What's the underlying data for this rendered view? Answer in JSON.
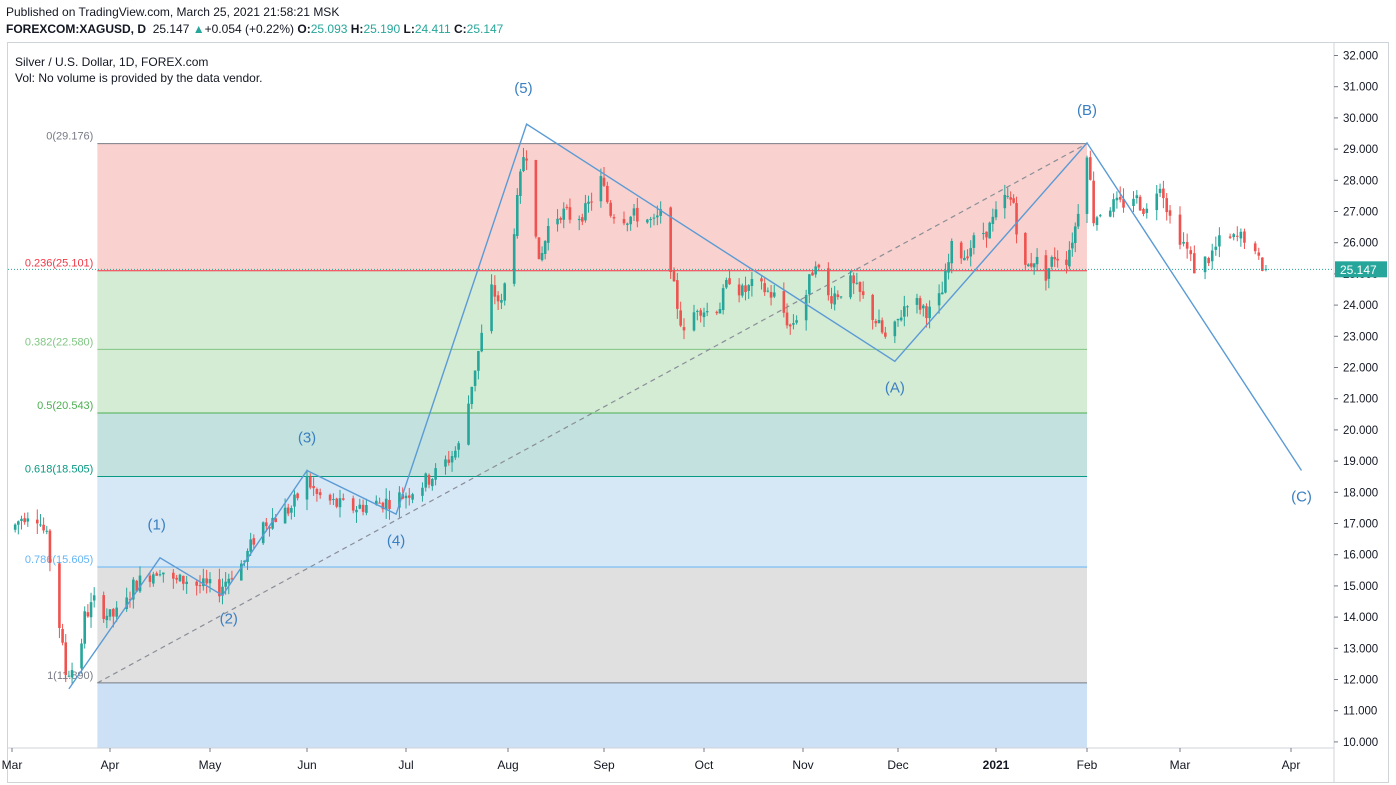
{
  "header": {
    "published": "Published on TradingView.com, March 25, 2021 21:58:21 MSK",
    "symbol": "FOREXCOM:XAGUSD, D",
    "last": "25.147",
    "change_arrow": "▲",
    "change": "+0.054 (+0.22%)",
    "o_label": "O:",
    "o": "25.093",
    "h_label": "H:",
    "h": "25.190",
    "l_label": "L:",
    "l": "24.411",
    "c_label": "C:",
    "c": "25.147"
  },
  "legend": {
    "title": "Silver / U.S. Dollar, 1D, FOREX.com",
    "vol": "Vol: No volume is provided by the data vendor."
  },
  "colors": {
    "up": "#26a69a",
    "down": "#ef5350",
    "wave": "#5b9bd5",
    "price_label_bg": "#26a69a"
  },
  "chart_data": {
    "type": "candlestick",
    "title": "Silver / U.S. Dollar, 1D, FOREX.com",
    "y_ticks": [
      "32.000",
      "31.000",
      "30.000",
      "29.000",
      "28.000",
      "27.000",
      "26.000",
      "25.000",
      "24.000",
      "23.000",
      "22.000",
      "21.000",
      "20.000",
      "19.000",
      "18.000",
      "17.000",
      "16.000",
      "15.000",
      "14.000",
      "13.000",
      "12.000",
      "11.000",
      "10.000"
    ],
    "ylim": [
      9.7,
      32.3
    ],
    "x_ticks": [
      "Mar",
      "Apr",
      "May",
      "Jun",
      "Jul",
      "Aug",
      "Sep",
      "Oct",
      "Nov",
      "Dec",
      "2021",
      "Feb",
      "Mar",
      "Apr"
    ],
    "x_tick_dates": [
      "2020-03-01",
      "2020-04-01",
      "2020-05-01",
      "2020-06-01",
      "2020-07-01",
      "2020-08-01",
      "2020-09-01",
      "2020-10-01",
      "2020-11-01",
      "2020-12-01",
      "2021-01-01",
      "2021-02-01",
      "2021-03-01",
      "2021-04-01"
    ],
    "x_range": [
      "2020-03-01",
      "2021-04-15"
    ],
    "last_price": "25.147",
    "last_price_value": 25.147,
    "price_path": [
      [
        "2020-03-01",
        16.8
      ],
      [
        "2020-03-04",
        17.2
      ],
      [
        "2020-03-08",
        17.5
      ],
      [
        "2020-03-12",
        16.5
      ],
      [
        "2020-03-15",
        14.5
      ],
      [
        "2020-03-18",
        12.2
      ],
      [
        "2020-03-22",
        12.5
      ],
      [
        "2020-03-24",
        14.0
      ],
      [
        "2020-03-27",
        14.5
      ],
      [
        "2020-04-01",
        14.0
      ],
      [
        "2020-04-05",
        14.2
      ],
      [
        "2020-04-08",
        15.0
      ],
      [
        "2020-04-12",
        15.3
      ],
      [
        "2020-04-16",
        15.6
      ],
      [
        "2020-04-20",
        15.1
      ],
      [
        "2020-04-24",
        15.2
      ],
      [
        "2020-04-28",
        15.0
      ],
      [
        "2020-05-04",
        14.9
      ],
      [
        "2020-05-07",
        15.3
      ],
      [
        "2020-05-12",
        15.8
      ],
      [
        "2020-05-15",
        16.5
      ],
      [
        "2020-05-18",
        17.0
      ],
      [
        "2020-05-22",
        17.2
      ],
      [
        "2020-05-27",
        17.5
      ],
      [
        "2020-06-01",
        18.4
      ],
      [
        "2020-06-04",
        17.9
      ],
      [
        "2020-06-10",
        17.6
      ],
      [
        "2020-06-15",
        17.5
      ],
      [
        "2020-06-20",
        17.6
      ],
      [
        "2020-06-25",
        17.7
      ],
      [
        "2020-06-30",
        17.9
      ],
      [
        "2020-07-05",
        18.2
      ],
      [
        "2020-07-10",
        18.6
      ],
      [
        "2020-07-15",
        19.2
      ],
      [
        "2020-07-18",
        19.6
      ],
      [
        "2020-07-21",
        21.5
      ],
      [
        "2020-07-23",
        22.5
      ],
      [
        "2020-07-27",
        24.5
      ],
      [
        "2020-07-30",
        24.0
      ],
      [
        "2020-08-03",
        26.5
      ],
      [
        "2020-08-06",
        28.8
      ],
      [
        "2020-08-08",
        29.0
      ],
      [
        "2020-08-11",
        25.2
      ],
      [
        "2020-08-14",
        26.5
      ],
      [
        "2020-08-18",
        27.0
      ],
      [
        "2020-08-22",
        26.8
      ],
      [
        "2020-08-26",
        27.0
      ],
      [
        "2020-08-31",
        28.0
      ],
      [
        "2020-09-03",
        27.0
      ],
      [
        "2020-09-08",
        26.8
      ],
      [
        "2020-09-12",
        26.9
      ],
      [
        "2020-09-16",
        26.6
      ],
      [
        "2020-09-19",
        27.0
      ],
      [
        "2020-09-22",
        24.5
      ],
      [
        "2020-09-25",
        23.0
      ],
      [
        "2020-09-29",
        24.0
      ],
      [
        "2020-10-02",
        23.8
      ],
      [
        "2020-10-06",
        24.0
      ],
      [
        "2020-10-09",
        24.9
      ],
      [
        "2020-10-13",
        24.4
      ],
      [
        "2020-10-16",
        24.6
      ],
      [
        "2020-10-20",
        24.5
      ],
      [
        "2020-10-24",
        24.2
      ],
      [
        "2020-10-28",
        23.3
      ],
      [
        "2020-11-01",
        24.0
      ],
      [
        "2020-11-05",
        25.5
      ],
      [
        "2020-11-08",
        24.2
      ],
      [
        "2020-11-12",
        24.4
      ],
      [
        "2020-11-16",
        24.7
      ],
      [
        "2020-11-20",
        24.2
      ],
      [
        "2020-11-24",
        23.5
      ],
      [
        "2020-11-28",
        22.7
      ],
      [
        "2020-12-01",
        23.5
      ],
      [
        "2020-12-04",
        24.2
      ],
      [
        "2020-12-08",
        24.0
      ],
      [
        "2020-12-12",
        23.7
      ],
      [
        "2020-12-15",
        24.4
      ],
      [
        "2020-12-18",
        25.8
      ],
      [
        "2020-12-22",
        25.6
      ],
      [
        "2020-12-26",
        26.2
      ],
      [
        "2020-12-30",
        26.5
      ],
      [
        "2021-01-04",
        27.4
      ],
      [
        "2021-01-07",
        27.3
      ],
      [
        "2021-01-10",
        25.0
      ],
      [
        "2021-01-14",
        25.5
      ],
      [
        "2021-01-18",
        25.0
      ],
      [
        "2021-01-21",
        25.6
      ],
      [
        "2021-01-25",
        25.5
      ],
      [
        "2021-01-28",
        26.5
      ],
      [
        "2021-02-01",
        29.0
      ],
      [
        "2021-02-03",
        26.8
      ],
      [
        "2021-02-07",
        27.2
      ],
      [
        "2021-02-11",
        27.2
      ],
      [
        "2021-02-15",
        27.5
      ],
      [
        "2021-02-19",
        27.0
      ],
      [
        "2021-02-23",
        28.0
      ],
      [
        "2021-02-26",
        26.8
      ],
      [
        "2021-03-02",
        26.0
      ],
      [
        "2021-03-05",
        25.2
      ],
      [
        "2021-03-09",
        25.5
      ],
      [
        "2021-03-12",
        26.0
      ],
      [
        "2021-03-16",
        26.1
      ],
      [
        "2021-03-19",
        26.2
      ],
      [
        "2021-03-22",
        25.5
      ],
      [
        "2021-03-25",
        25.147
      ]
    ],
    "fib_levels": [
      {
        "label": "0(29.176)",
        "value": 29.176,
        "line": "#787b86",
        "fill": "#f8c9c6"
      },
      {
        "label": "0.236(25.101)",
        "value": 25.101,
        "line": "#f23645",
        "fill": "#cde8cc"
      },
      {
        "label": "0.382(22.580)",
        "value": 22.58,
        "line": "#81c784",
        "fill": "#cde8cc"
      },
      {
        "label": "0.5(20.543)",
        "value": 20.543,
        "line": "#4caf50",
        "fill": "#b8ddd9"
      },
      {
        "label": "0.618(18.505)",
        "value": 18.505,
        "line": "#089981",
        "fill": "#cfe3f5"
      },
      {
        "label": "0.786(15.605)",
        "value": 15.605,
        "line": "#64b5f6",
        "fill": "#dbdbdb"
      },
      {
        "label": "1(11.890)",
        "value": 11.89,
        "line": "#787b86",
        "fill": "#c3dcf5"
      }
    ],
    "fib_start": "2020-03-28",
    "fib_end": "2021-02-01",
    "fib_bottom": 9.8,
    "fib_trend_line": [
      [
        "2020-03-28",
        11.89
      ],
      [
        "2021-02-01",
        29.176
      ]
    ],
    "wave_path": [
      [
        "2020-03-19",
        11.7
      ],
      [
        "2020-04-16",
        15.9
      ],
      [
        "2020-05-05",
        14.7
      ],
      [
        "2020-06-01",
        18.7
      ],
      [
        "2020-06-28",
        17.3
      ],
      [
        "2020-08-07",
        29.8
      ],
      [
        "2020-11-30",
        22.2
      ],
      [
        "2021-02-01",
        29.2
      ],
      [
        "2021-04-04",
        18.7
      ]
    ],
    "wave_labels": [
      {
        "text": "(1)",
        "date": "2020-04-15",
        "price": 16.8
      },
      {
        "text": "(2)",
        "date": "2020-05-07",
        "price": 13.8
      },
      {
        "text": "(3)",
        "date": "2020-06-01",
        "price": 19.6
      },
      {
        "text": "(4)",
        "date": "2020-06-28",
        "price": 16.3
      },
      {
        "text": "(5)",
        "date": "2020-08-06",
        "price": 30.8
      },
      {
        "text": "(A)",
        "date": "2020-11-30",
        "price": 21.2
      },
      {
        "text": "(B)",
        "date": "2021-02-01",
        "price": 30.1
      },
      {
        "text": "(C)",
        "date": "2021-04-04",
        "price": 17.7
      }
    ]
  }
}
